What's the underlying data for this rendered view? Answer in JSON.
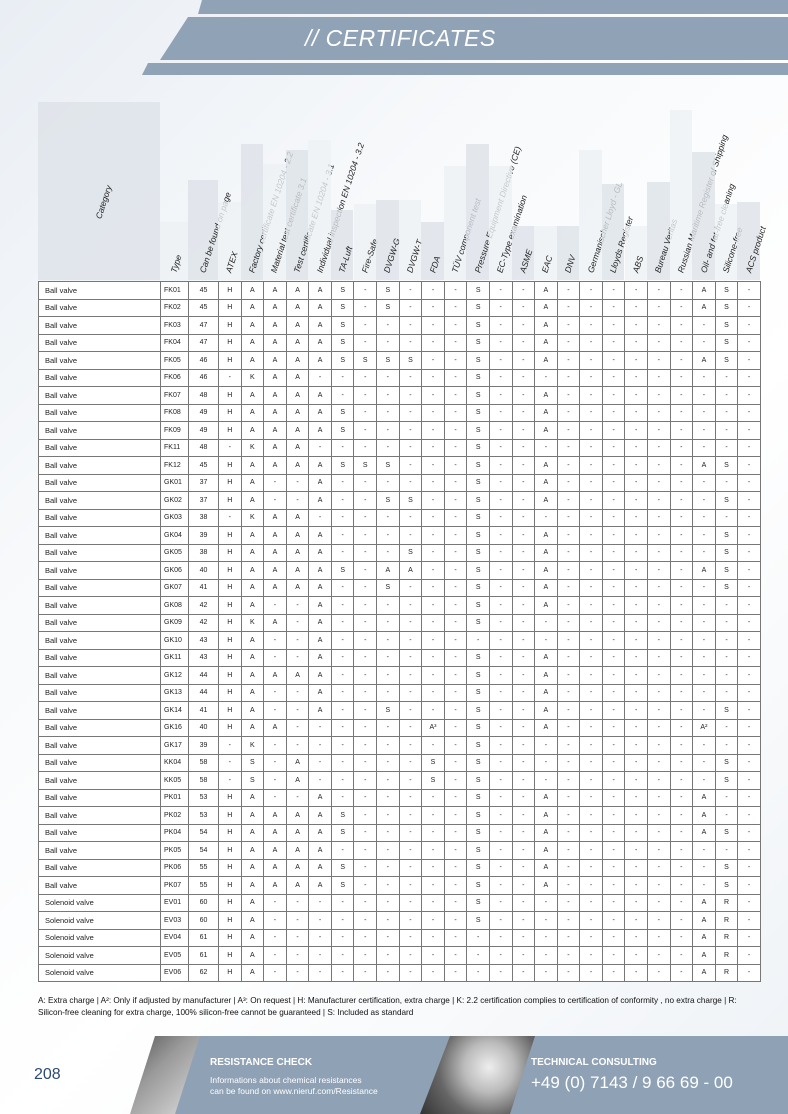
{
  "header": {
    "title": "// CERTIFICATES"
  },
  "columns": [
    "Category",
    "Type",
    "Can be found on page",
    "ATEX",
    "Factory certificate EN 10204 - 2.2",
    "Material test certificate 3.1",
    "Test certificate EN 10204 - 3.1",
    "Individual inspection EN 10204 - 3.2",
    "TA-Luft",
    "Fire-Safe",
    "DVGW-G",
    "DVGW-T",
    "FDA",
    "TÜV component test",
    "Pressure Equipment Directive (CE)",
    "EC-Type examination",
    "ASME",
    "EAC",
    "DNV",
    "Germanischer Lloyd - GL",
    "Lloyds Register",
    "ABS",
    "Bureau Veritas",
    "Russian Maritime Register of Shipping",
    "Oil- and fat-free cleaning",
    "Silicone-free",
    "ACS product"
  ],
  "rows": [
    [
      "Ball valve",
      "FK01",
      "45",
      "H",
      "A",
      "A",
      "A",
      "A",
      "S",
      "-",
      "S",
      "-",
      "-",
      "-",
      "S",
      "-",
      "-",
      "A",
      "-",
      "-",
      "-",
      "-",
      "-",
      "-",
      "A",
      "S",
      "-"
    ],
    [
      "Ball valve",
      "FK02",
      "45",
      "H",
      "A",
      "A",
      "A",
      "A",
      "S",
      "-",
      "S",
      "-",
      "-",
      "-",
      "S",
      "-",
      "-",
      "A",
      "-",
      "-",
      "-",
      "-",
      "-",
      "-",
      "A",
      "S",
      "-"
    ],
    [
      "Ball valve",
      "FK03",
      "47",
      "H",
      "A",
      "A",
      "A",
      "A",
      "S",
      "-",
      "-",
      "-",
      "-",
      "-",
      "S",
      "-",
      "-",
      "A",
      "-",
      "-",
      "-",
      "-",
      "-",
      "-",
      "-",
      "S",
      "-"
    ],
    [
      "Ball valve",
      "FK04",
      "47",
      "H",
      "A",
      "A",
      "A",
      "A",
      "S",
      "-",
      "-",
      "-",
      "-",
      "-",
      "S",
      "-",
      "-",
      "A",
      "-",
      "-",
      "-",
      "-",
      "-",
      "-",
      "-",
      "S",
      "-"
    ],
    [
      "Ball valve",
      "FK05",
      "46",
      "H",
      "A",
      "A",
      "A",
      "A",
      "S",
      "S",
      "S",
      "S",
      "-",
      "-",
      "S",
      "-",
      "-",
      "A",
      "-",
      "-",
      "-",
      "-",
      "-",
      "-",
      "A",
      "S",
      "-"
    ],
    [
      "Ball valve",
      "FK06",
      "46",
      "-",
      "K",
      "A",
      "A",
      "-",
      "-",
      "-",
      "-",
      "-",
      "-",
      "-",
      "S",
      "-",
      "-",
      "-",
      "-",
      "-",
      "-",
      "-",
      "-",
      "-",
      "-",
      "-",
      "-"
    ],
    [
      "Ball valve",
      "FK07",
      "48",
      "H",
      "A",
      "A",
      "A",
      "A",
      "-",
      "-",
      "-",
      "-",
      "-",
      "-",
      "S",
      "-",
      "-",
      "A",
      "-",
      "-",
      "-",
      "-",
      "-",
      "-",
      "-",
      "-",
      "-"
    ],
    [
      "Ball valve",
      "FK08",
      "49",
      "H",
      "A",
      "A",
      "A",
      "A",
      "S",
      "-",
      "-",
      "-",
      "-",
      "-",
      "S",
      "-",
      "-",
      "A",
      "-",
      "-",
      "-",
      "-",
      "-",
      "-",
      "-",
      "-",
      "-"
    ],
    [
      "Ball valve",
      "FK09",
      "49",
      "H",
      "A",
      "A",
      "A",
      "A",
      "S",
      "-",
      "-",
      "-",
      "-",
      "-",
      "S",
      "-",
      "-",
      "A",
      "-",
      "-",
      "-",
      "-",
      "-",
      "-",
      "-",
      "-",
      "-"
    ],
    [
      "Ball valve",
      "FK11",
      "48",
      "-",
      "K",
      "A",
      "A",
      "-",
      "-",
      "-",
      "-",
      "-",
      "-",
      "-",
      "S",
      "-",
      "-",
      "-",
      "-",
      "-",
      "-",
      "-",
      "-",
      "-",
      "-",
      "-",
      "-"
    ],
    [
      "Ball valve",
      "FK12",
      "45",
      "H",
      "A",
      "A",
      "A",
      "A",
      "S",
      "S",
      "S",
      "-",
      "-",
      "-",
      "S",
      "-",
      "-",
      "A",
      "-",
      "-",
      "-",
      "-",
      "-",
      "-",
      "A",
      "S",
      "-"
    ],
    [
      "Ball valve",
      "GK01",
      "37",
      "H",
      "A",
      "-",
      "-",
      "A",
      "-",
      "-",
      "-",
      "-",
      "-",
      "-",
      "S",
      "-",
      "-",
      "A",
      "-",
      "-",
      "-",
      "-",
      "-",
      "-",
      "-",
      "-",
      "-"
    ],
    [
      "Ball valve",
      "GK02",
      "37",
      "H",
      "A",
      "-",
      "-",
      "A",
      "-",
      "-",
      "S",
      "S",
      "-",
      "-",
      "S",
      "-",
      "-",
      "A",
      "-",
      "-",
      "-",
      "-",
      "-",
      "-",
      "-",
      "S",
      "-"
    ],
    [
      "Ball valve",
      "GK03",
      "38",
      "-",
      "K",
      "A",
      "A",
      "-",
      "-",
      "-",
      "-",
      "-",
      "-",
      "-",
      "S",
      "-",
      "-",
      "-",
      "-",
      "-",
      "-",
      "-",
      "-",
      "-",
      "-",
      "-",
      "-"
    ],
    [
      "Ball valve",
      "GK04",
      "39",
      "H",
      "A",
      "A",
      "A",
      "A",
      "-",
      "-",
      "-",
      "-",
      "-",
      "-",
      "S",
      "-",
      "-",
      "A",
      "-",
      "-",
      "-",
      "-",
      "-",
      "-",
      "-",
      "S",
      "-"
    ],
    [
      "Ball valve",
      "GK05",
      "38",
      "H",
      "A",
      "A",
      "A",
      "A",
      "-",
      "-",
      "-",
      "S",
      "-",
      "-",
      "S",
      "-",
      "-",
      "A",
      "-",
      "-",
      "-",
      "-",
      "-",
      "-",
      "-",
      "S",
      "-"
    ],
    [
      "Ball valve",
      "GK06",
      "40",
      "H",
      "A",
      "A",
      "A",
      "A",
      "S",
      "-",
      "A",
      "A",
      "-",
      "-",
      "S",
      "-",
      "-",
      "A",
      "-",
      "-",
      "-",
      "-",
      "-",
      "-",
      "A",
      "S",
      "-"
    ],
    [
      "Ball valve",
      "GK07",
      "41",
      "H",
      "A",
      "A",
      "A",
      "A",
      "-",
      "-",
      "S",
      "-",
      "-",
      "-",
      "S",
      "-",
      "-",
      "A",
      "-",
      "-",
      "-",
      "-",
      "-",
      "-",
      "-",
      "S",
      "-"
    ],
    [
      "Ball valve",
      "GK08",
      "42",
      "H",
      "A",
      "-",
      "-",
      "A",
      "-",
      "-",
      "-",
      "-",
      "-",
      "-",
      "S",
      "-",
      "-",
      "A",
      "-",
      "-",
      "-",
      "-",
      "-",
      "-",
      "-",
      "-",
      "-"
    ],
    [
      "Ball valve",
      "GK09",
      "42",
      "H",
      "K",
      "A",
      "-",
      "A",
      "-",
      "-",
      "-",
      "-",
      "-",
      "-",
      "S",
      "-",
      "-",
      "-",
      "-",
      "-",
      "-",
      "-",
      "-",
      "-",
      "-",
      "-",
      "-"
    ],
    [
      "Ball valve",
      "GK10",
      "43",
      "H",
      "A",
      "-",
      "-",
      "A",
      "-",
      "-",
      "-",
      "-",
      "-",
      "-",
      "-",
      "-",
      "-",
      "-",
      "-",
      "-",
      "-",
      "-",
      "-",
      "-",
      "-",
      "-",
      "-"
    ],
    [
      "Ball valve",
      "GK11",
      "43",
      "H",
      "A",
      "-",
      "-",
      "A",
      "-",
      "-",
      "-",
      "-",
      "-",
      "-",
      "S",
      "-",
      "-",
      "A",
      "-",
      "-",
      "-",
      "-",
      "-",
      "-",
      "-",
      "-",
      "-"
    ],
    [
      "Ball valve",
      "GK12",
      "44",
      "H",
      "A",
      "A",
      "A",
      "A",
      "-",
      "-",
      "-",
      "-",
      "-",
      "-",
      "S",
      "-",
      "-",
      "A",
      "-",
      "-",
      "-",
      "-",
      "-",
      "-",
      "-",
      "-",
      "-"
    ],
    [
      "Ball valve",
      "GK13",
      "44",
      "H",
      "A",
      "-",
      "-",
      "A",
      "-",
      "-",
      "-",
      "-",
      "-",
      "-",
      "S",
      "-",
      "-",
      "A",
      "-",
      "-",
      "-",
      "-",
      "-",
      "-",
      "-",
      "-",
      "-"
    ],
    [
      "Ball valve",
      "GK14",
      "41",
      "H",
      "A",
      "-",
      "-",
      "A",
      "-",
      "-",
      "S",
      "-",
      "-",
      "-",
      "S",
      "-",
      "-",
      "A",
      "-",
      "-",
      "-",
      "-",
      "-",
      "-",
      "-",
      "S",
      "-"
    ],
    [
      "Ball valve",
      "GK16",
      "40",
      "H",
      "A",
      "A",
      "-",
      "-",
      "-",
      "-",
      "-",
      "-",
      "A³",
      "-",
      "S",
      "-",
      "-",
      "A",
      "-",
      "-",
      "-",
      "-",
      "-",
      "-",
      "A²",
      "-",
      "-"
    ],
    [
      "Ball valve",
      "GK17",
      "39",
      "-",
      "K",
      "-",
      "-",
      "-",
      "-",
      "-",
      "-",
      "-",
      "-",
      "-",
      "S",
      "-",
      "-",
      "-",
      "-",
      "-",
      "-",
      "-",
      "-",
      "-",
      "-",
      "-",
      "-"
    ],
    [
      "Ball valve",
      "KK04",
      "58",
      "-",
      "S",
      "-",
      "A",
      "-",
      "-",
      "-",
      "-",
      "-",
      "S",
      "-",
      "S",
      "-",
      "-",
      "-",
      "-",
      "-",
      "-",
      "-",
      "-",
      "-",
      "-",
      "S",
      "-"
    ],
    [
      "Ball valve",
      "KK05",
      "58",
      "-",
      "S",
      "-",
      "A",
      "-",
      "-",
      "-",
      "-",
      "-",
      "S",
      "-",
      "S",
      "-",
      "-",
      "-",
      "-",
      "-",
      "-",
      "-",
      "-",
      "-",
      "-",
      "S",
      "-"
    ],
    [
      "Ball valve",
      "PK01",
      "53",
      "H",
      "A",
      "-",
      "-",
      "A",
      "-",
      "-",
      "-",
      "-",
      "-",
      "-",
      "S",
      "-",
      "-",
      "A",
      "-",
      "-",
      "-",
      "-",
      "-",
      "-",
      "A",
      "-",
      "-"
    ],
    [
      "Ball valve",
      "PK02",
      "53",
      "H",
      "A",
      "A",
      "A",
      "A",
      "S",
      "-",
      "-",
      "-",
      "-",
      "-",
      "S",
      "-",
      "-",
      "A",
      "-",
      "-",
      "-",
      "-",
      "-",
      "-",
      "A",
      "-",
      "-"
    ],
    [
      "Ball valve",
      "PK04",
      "54",
      "H",
      "A",
      "A",
      "A",
      "A",
      "S",
      "-",
      "-",
      "-",
      "-",
      "-",
      "S",
      "-",
      "-",
      "A",
      "-",
      "-",
      "-",
      "-",
      "-",
      "-",
      "A",
      "S",
      "-"
    ],
    [
      "Ball valve",
      "PK05",
      "54",
      "H",
      "A",
      "A",
      "A",
      "A",
      "-",
      "-",
      "-",
      "-",
      "-",
      "-",
      "S",
      "-",
      "-",
      "A",
      "-",
      "-",
      "-",
      "-",
      "-",
      "-",
      "-",
      "-",
      "-"
    ],
    [
      "Ball valve",
      "PK06",
      "55",
      "H",
      "A",
      "A",
      "A",
      "A",
      "S",
      "-",
      "-",
      "-",
      "-",
      "-",
      "S",
      "-",
      "-",
      "A",
      "-",
      "-",
      "-",
      "-",
      "-",
      "-",
      "-",
      "S",
      "-"
    ],
    [
      "Ball valve",
      "PK07",
      "55",
      "H",
      "A",
      "A",
      "A",
      "A",
      "S",
      "-",
      "-",
      "-",
      "-",
      "-",
      "S",
      "-",
      "-",
      "A",
      "-",
      "-",
      "-",
      "-",
      "-",
      "-",
      "-",
      "S",
      "-"
    ],
    [
      "Solenoid valve",
      "EV01",
      "60",
      "H",
      "A",
      "-",
      "-",
      "-",
      "-",
      "-",
      "-",
      "-",
      "-",
      "-",
      "S",
      "-",
      "-",
      "-",
      "-",
      "-",
      "-",
      "-",
      "-",
      "-",
      "A",
      "R",
      "-"
    ],
    [
      "Solenoid valve",
      "EV03",
      "60",
      "H",
      "A",
      "-",
      "-",
      "-",
      "-",
      "-",
      "-",
      "-",
      "-",
      "-",
      "S",
      "-",
      "-",
      "-",
      "-",
      "-",
      "-",
      "-",
      "-",
      "-",
      "A",
      "R",
      "-"
    ],
    [
      "Solenoid valve",
      "EV04",
      "61",
      "H",
      "A",
      "-",
      "-",
      "-",
      "-",
      "-",
      "-",
      "-",
      "-",
      "-",
      "-",
      "-",
      "-",
      "-",
      "-",
      "-",
      "-",
      "-",
      "-",
      "-",
      "A",
      "R",
      "-"
    ],
    [
      "Solenoid valve",
      "EV05",
      "61",
      "H",
      "A",
      "-",
      "-",
      "-",
      "-",
      "-",
      "-",
      "-",
      "-",
      "-",
      "-",
      "-",
      "-",
      "-",
      "-",
      "-",
      "-",
      "-",
      "-",
      "-",
      "A",
      "R",
      "-"
    ],
    [
      "Solenoid valve",
      "EV06",
      "62",
      "H",
      "A",
      "-",
      "-",
      "-",
      "-",
      "-",
      "-",
      "-",
      "-",
      "-",
      "-",
      "-",
      "-",
      "-",
      "-",
      "-",
      "-",
      "-",
      "-",
      "-",
      "A",
      "R",
      "-"
    ]
  ],
  "legend": "A: Extra charge | A²: Only if adjusted by manufacturer  | A³: On request | H: Manufacturer certification, extra charge | K: 2.2 certification complies to certification of conformity , no extra charge | R: Silicon-free cleaning for extra charge, 100% silicon-free cannot be guaranteed | S: Included as standard",
  "footer": {
    "page_number": "208",
    "resistance_title": "RESISTANCE CHECK",
    "resistance_line1": "Informations about chemical resistances",
    "resistance_line2": "can be found on www.nieruf.com/Resistance",
    "consulting_title": "TECHNICAL CONSULTING",
    "consulting_phone": "+49 (0) 7143 / 9 66 69 - 00"
  },
  "colors": {
    "band": "#90a2b6",
    "page_number": "#2d4a73"
  }
}
